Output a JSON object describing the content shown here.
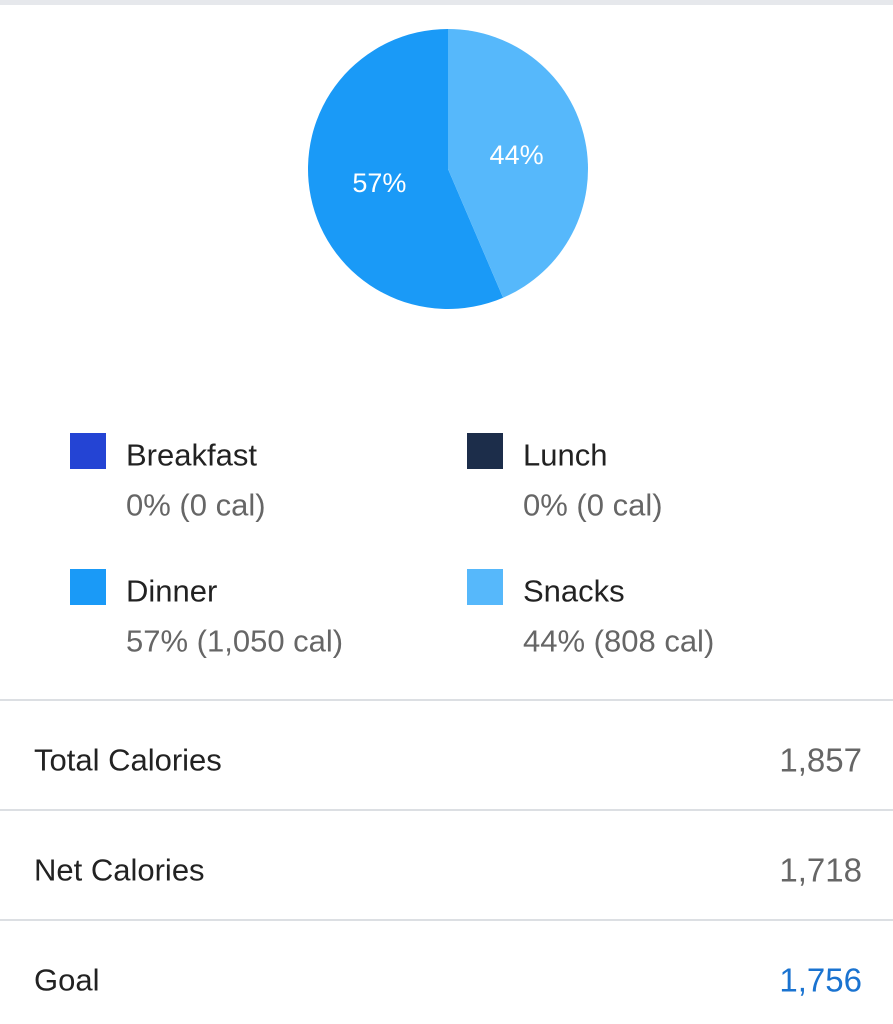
{
  "chart_data": {
    "type": "pie",
    "categories": [
      "Breakfast",
      "Lunch",
      "Dinner",
      "Snacks"
    ],
    "values": [
      0,
      0,
      57,
      44
    ],
    "value_labels": [
      "0% (0 cal)",
      "0% (0 cal)",
      "57% (1,050 cal)",
      "44% (808 cal)"
    ],
    "slice_labels": [
      null,
      null,
      "57%",
      "44%"
    ],
    "colors": [
      "#2444d4",
      "#1c2d4a",
      "#1a9af7",
      "#56b8fb"
    ]
  },
  "summary": [
    {
      "label": "Total Calories",
      "value": "1,857"
    },
    {
      "label": "Net Calories",
      "value": "1,718"
    },
    {
      "label": "Goal",
      "value": "1,756",
      "highlight": true
    }
  ]
}
